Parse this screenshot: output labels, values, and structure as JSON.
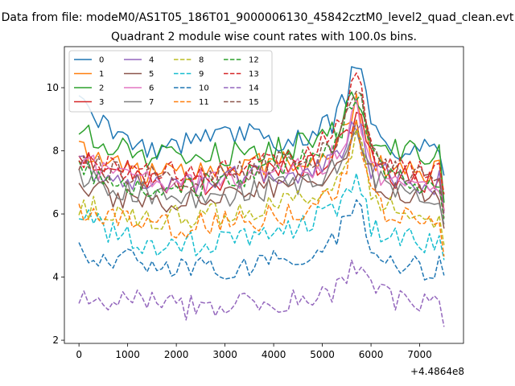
{
  "figure": {
    "suptitle": "Data from file: modeM0/AS1T05_186T01_9000006130_45842cztM0_level2_quad_clean.evt"
  },
  "chart_data": {
    "type": "line",
    "title": "Quadrant 2 module wise count rates with 100.0s bins.",
    "xlabel": "",
    "ylabel": "",
    "x_offset_label": "+4.4864e8",
    "xlim": [
      -300,
      7900
    ],
    "ylim": [
      1.9,
      11.3
    ],
    "xticks": [
      0,
      1000,
      2000,
      3000,
      4000,
      5000,
      6000,
      7000
    ],
    "yticks": [
      2,
      4,
      6,
      8,
      10
    ],
    "x": [
      0,
      700,
      1400,
      2100,
      2800,
      3500,
      4200,
      4900,
      5300,
      5500,
      5700,
      5850,
      6000,
      6300,
      6700,
      7100,
      7400,
      7580
    ],
    "legend": {
      "placement": "top-left",
      "columns": 4
    },
    "series": [
      {
        "name": "0",
        "color": "#1f77b4",
        "dashed": false,
        "values": [
          9.5,
          8.5,
          8.0,
          8.2,
          8.5,
          8.6,
          8.3,
          8.6,
          9.0,
          9.8,
          10.8,
          10.4,
          8.8,
          8.3,
          8.0,
          8.0,
          8.2,
          6.5
        ]
      },
      {
        "name": "1",
        "color": "#ff7f0e",
        "dashed": false,
        "values": [
          8.0,
          7.7,
          7.2,
          7.2,
          7.3,
          7.5,
          7.6,
          7.8,
          8.2,
          8.9,
          9.5,
          9.0,
          7.8,
          7.4,
          7.4,
          7.3,
          7.5,
          5.3
        ]
      },
      {
        "name": "2",
        "color": "#2ca02c",
        "dashed": false,
        "values": [
          8.6,
          8.2,
          7.8,
          7.8,
          7.9,
          8.0,
          8.1,
          8.3,
          8.7,
          9.3,
          9.8,
          9.5,
          8.5,
          8.1,
          8.0,
          7.9,
          7.9,
          5.6
        ]
      },
      {
        "name": "3",
        "color": "#d62728",
        "dashed": false,
        "values": [
          7.9,
          7.5,
          7.1,
          7.0,
          7.0,
          7.2,
          7.3,
          7.6,
          8.0,
          8.6,
          9.2,
          8.8,
          7.7,
          7.3,
          7.1,
          7.0,
          7.0,
          5.4
        ]
      },
      {
        "name": "4",
        "color": "#9467bd",
        "dashed": false,
        "values": [
          7.5,
          7.2,
          7.0,
          7.0,
          7.1,
          7.2,
          7.3,
          7.4,
          7.8,
          8.3,
          8.8,
          8.5,
          7.5,
          7.2,
          7.0,
          7.0,
          7.0,
          5.3
        ]
      },
      {
        "name": "5",
        "color": "#8c564b",
        "dashed": false,
        "values": [
          7.0,
          6.5,
          6.3,
          6.4,
          6.5,
          6.6,
          6.8,
          7.0,
          7.4,
          8.0,
          8.6,
          8.2,
          7.2,
          6.8,
          6.6,
          6.6,
          6.5,
          5.0
        ]
      },
      {
        "name": "6",
        "color": "#e377c2",
        "dashed": false,
        "values": [
          7.6,
          7.3,
          7.0,
          7.0,
          7.0,
          7.2,
          7.3,
          7.5,
          7.9,
          8.5,
          9.3,
          8.6,
          7.4,
          7.1,
          7.0,
          6.9,
          6.9,
          5.2
        ]
      },
      {
        "name": "7",
        "color": "#7f7f7f",
        "dashed": false,
        "values": [
          7.3,
          6.9,
          6.6,
          6.5,
          6.5,
          6.7,
          6.9,
          7.1,
          7.5,
          8.1,
          8.7,
          8.3,
          7.2,
          6.9,
          6.7,
          6.7,
          6.6,
          5.1
        ]
      },
      {
        "name": "8",
        "color": "#bcbd22",
        "dashed": true,
        "values": [
          6.3,
          6.0,
          5.9,
          5.9,
          6.0,
          6.1,
          6.3,
          6.5,
          6.9,
          7.6,
          8.5,
          7.7,
          6.7,
          6.3,
          6.1,
          6.0,
          5.9,
          4.5
        ]
      },
      {
        "name": "9",
        "color": "#17becf",
        "dashed": true,
        "values": [
          6.0,
          5.4,
          5.1,
          5.0,
          5.1,
          5.3,
          5.5,
          5.9,
          6.3,
          6.9,
          7.2,
          6.6,
          5.6,
          5.3,
          5.2,
          5.1,
          5.1,
          4.1
        ]
      },
      {
        "name": "10",
        "color": "#1f77b4",
        "dashed": true,
        "values": [
          4.8,
          4.6,
          4.4,
          4.2,
          4.3,
          4.4,
          4.6,
          4.9,
          5.3,
          5.9,
          6.6,
          6.0,
          4.9,
          4.6,
          4.4,
          4.3,
          4.3,
          3.6
        ]
      },
      {
        "name": "11",
        "color": "#ff7f0e",
        "dashed": true,
        "values": [
          6.2,
          6.0,
          5.7,
          5.6,
          5.7,
          5.8,
          6.0,
          6.3,
          6.8,
          7.6,
          8.6,
          7.8,
          6.5,
          6.0,
          5.8,
          5.7,
          5.7,
          4.5
        ]
      },
      {
        "name": "12",
        "color": "#2ca02c",
        "dashed": true,
        "values": [
          7.4,
          7.1,
          6.9,
          6.9,
          7.0,
          7.2,
          7.5,
          7.8,
          8.3,
          9.1,
          9.9,
          9.2,
          7.8,
          7.3,
          7.1,
          7.0,
          7.0,
          5.3
        ]
      },
      {
        "name": "13",
        "color": "#d62728",
        "dashed": true,
        "values": [
          7.8,
          7.5,
          7.3,
          7.3,
          7.4,
          7.6,
          7.8,
          8.1,
          8.6,
          9.5,
          10.4,
          9.5,
          8.0,
          7.6,
          7.4,
          7.3,
          7.3,
          5.5
        ]
      },
      {
        "name": "14",
        "color": "#9467bd",
        "dashed": true,
        "values": [
          3.5,
          3.3,
          3.2,
          3.0,
          3.1,
          3.2,
          3.3,
          3.4,
          3.6,
          4.0,
          4.3,
          4.4,
          3.7,
          3.4,
          3.3,
          3.2,
          3.2,
          2.4
        ]
      },
      {
        "name": "15",
        "color": "#8c564b",
        "dashed": true,
        "values": [
          7.6,
          7.3,
          7.1,
          7.1,
          7.2,
          7.4,
          7.6,
          7.9,
          8.4,
          9.2,
          10.1,
          9.3,
          7.9,
          7.4,
          7.2,
          7.1,
          7.1,
          5.4
        ]
      }
    ]
  }
}
